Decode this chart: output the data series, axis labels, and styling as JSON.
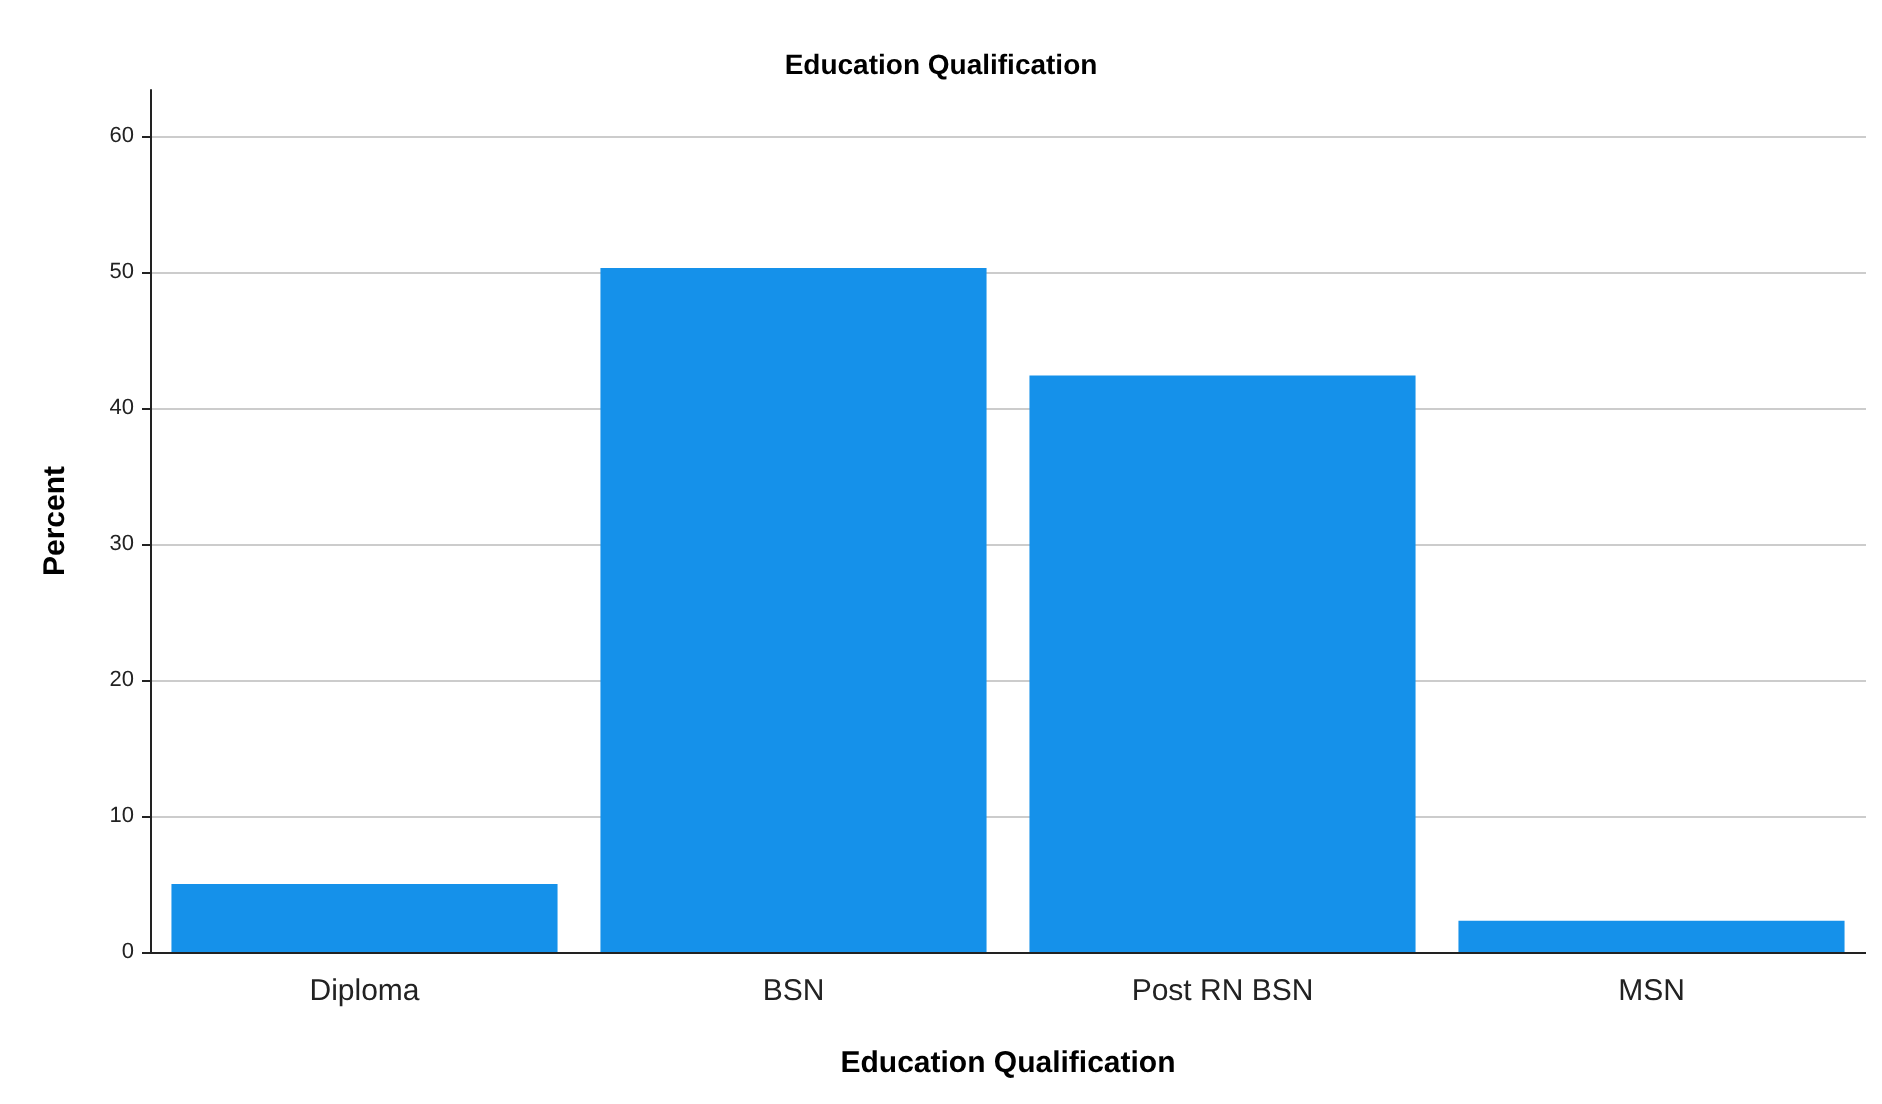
{
  "chart_data": {
    "type": "bar",
    "title": "Education Qualification",
    "xlabel": "Education Qualification",
    "ylabel": "Percent",
    "categories": [
      "Diploma",
      "BSN",
      "Post RN BSN",
      "MSN"
    ],
    "values": [
      5.0,
      50.3,
      42.4,
      2.3
    ],
    "color": "#1591ea",
    "ylim": [
      0,
      63.4
    ],
    "yticks": [
      0,
      10,
      20,
      30,
      40,
      50,
      60
    ],
    "grid": "y"
  }
}
